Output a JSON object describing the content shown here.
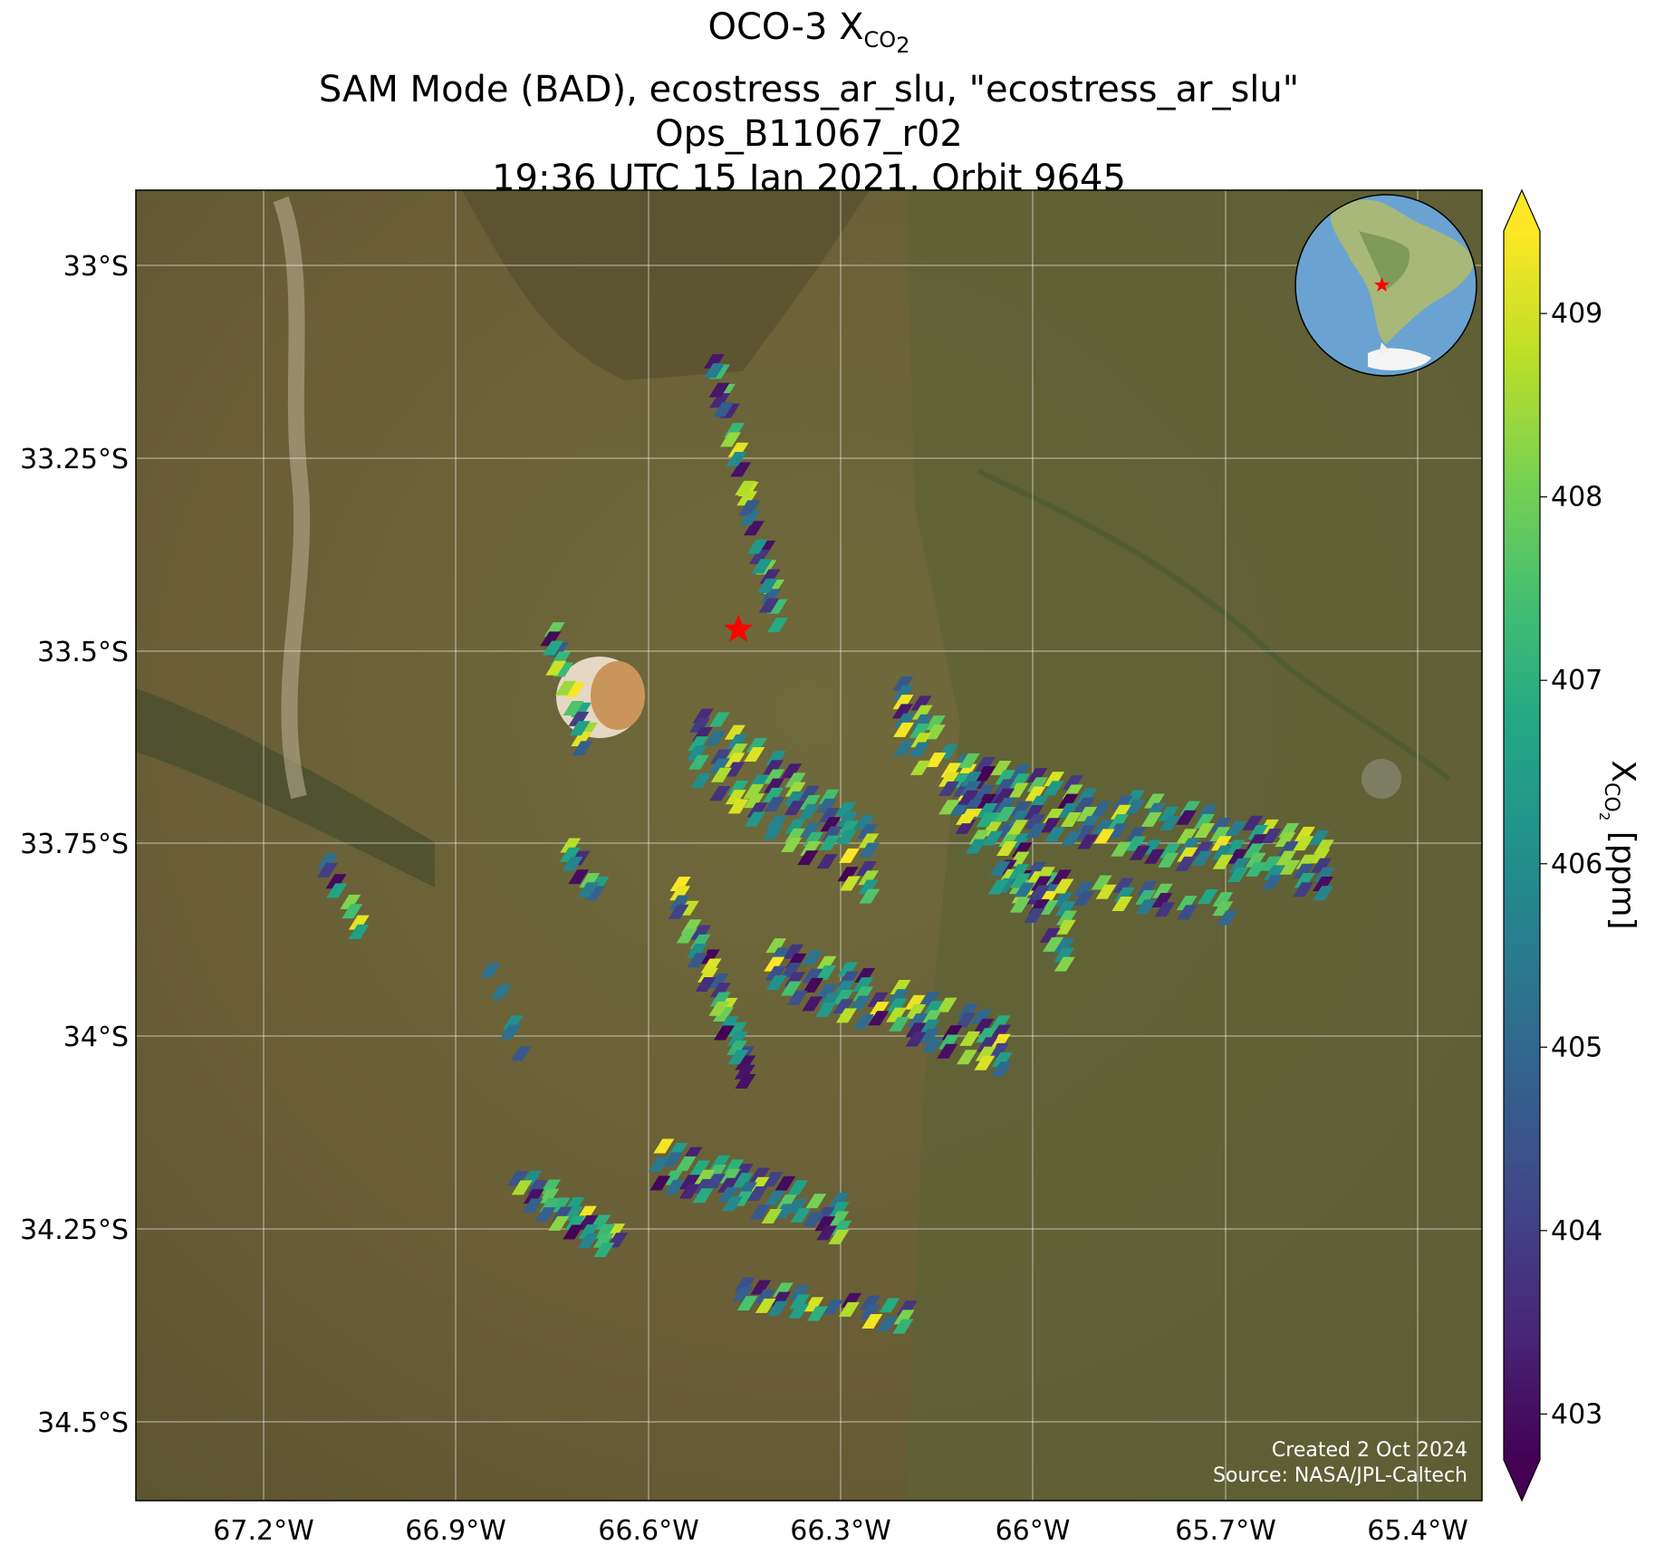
{
  "title": {
    "line1_main": "OCO-3 X",
    "line1_sub": "CO",
    "line1_sub2": "2",
    "line2": "SAM Mode (BAD), ecostress_ar_slu, \"ecostress_ar_slu\"",
    "line3": "Ops_B11067_r02",
    "line4": "19:36 UTC 15 Jan 2021, Orbit 9645"
  },
  "credits": {
    "created": "Created 2 Oct 2024",
    "source": "Source: NASA/JPL-Caltech"
  },
  "colorbar": {
    "label_main": "X",
    "label_sub": "CO",
    "label_sub2": "2",
    "label_unit": "[ppm]",
    "vmin": 402.75,
    "vmax": 409.45,
    "ticks": [
      "403",
      "404",
      "405",
      "406",
      "407",
      "408",
      "409"
    ],
    "colormap": "viridis",
    "extend": "both"
  },
  "map": {
    "lon_range": [
      -67.4,
      -65.3
    ],
    "lat_range": [
      -34.6,
      -32.9
    ],
    "lon_ticks": [
      "67.2°W",
      "66.9°W",
      "66.6°W",
      "66.3°W",
      "66°W",
      "65.7°W",
      "65.4°W"
    ],
    "lat_ticks": [
      "33°S",
      "33.25°S",
      "33.5°S",
      "33.75°S",
      "34°S",
      "34.25°S",
      "34.5°S"
    ],
    "gridlines": true,
    "background": "satellite imagery",
    "target_marker": {
      "lon": -66.46,
      "lat": -33.47,
      "color": "#ff0000",
      "shape": "star"
    },
    "inset_globe": {
      "region": "South America",
      "marker_color": "#ff0000"
    }
  }
}
